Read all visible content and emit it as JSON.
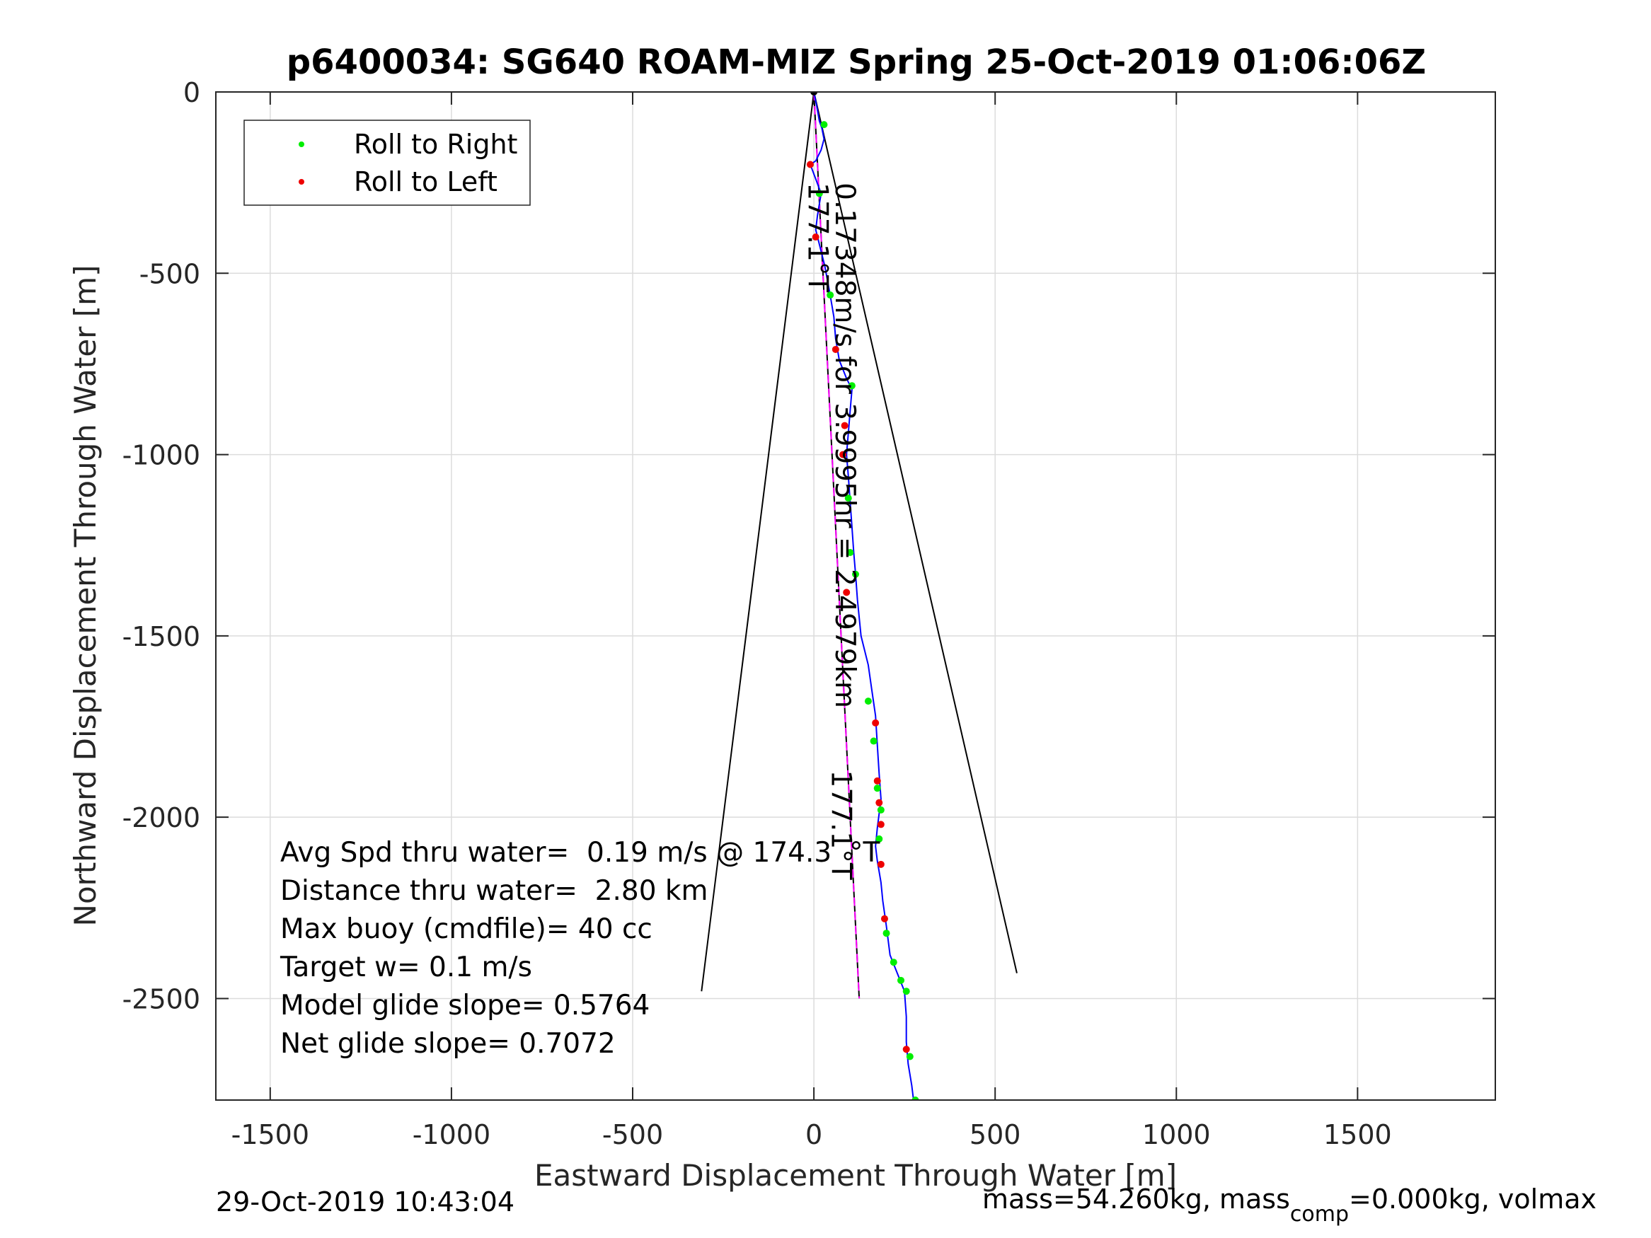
{
  "chart_data": {
    "type": "line",
    "title": "p6400034: SG640 ROAM-MIZ Spring 25-Oct-2019 01:06:06Z",
    "xlabel": "Eastward Displacement Through Water [m]",
    "ylabel": "Northward Displacement Through Water [m]",
    "xlim": [
      -1650,
      1880
    ],
    "ylim": [
      -2780,
      0
    ],
    "xticks": [
      -1500,
      -1000,
      -500,
      0,
      500,
      1000,
      1500
    ],
    "yticks": [
      0,
      -500,
      -1000,
      -1500,
      -2000,
      -2500
    ],
    "grid": true,
    "legend_position": "top-left",
    "legend": [
      {
        "label": "Roll to Right",
        "color": "#00ee00"
      },
      {
        "label": "Roll to Left",
        "color": "#ee0000"
      }
    ],
    "track": {
      "color": "#0000ff",
      "x": [
        0,
        8,
        15,
        22,
        28,
        20,
        5,
        -10,
        5,
        20,
        10,
        5,
        15,
        30,
        45,
        55,
        60,
        70,
        90,
        105,
        100,
        95,
        90,
        95,
        100,
        105,
        110,
        115,
        120,
        130,
        150,
        160,
        170,
        175,
        180,
        185,
        175,
        170,
        175,
        185,
        190,
        200,
        210,
        230,
        250,
        255,
        255,
        260,
        270,
        275
      ],
      "y": [
        0,
        -40,
        -80,
        -100,
        -130,
        -160,
        -190,
        -200,
        -240,
        -280,
        -340,
        -380,
        -420,
        -480,
        -560,
        -620,
        -680,
        -740,
        -790,
        -820,
        -880,
        -940,
        -1000,
        -1060,
        -1130,
        -1200,
        -1270,
        -1330,
        -1400,
        -1500,
        -1580,
        -1650,
        -1720,
        -1800,
        -1880,
        -1950,
        -2030,
        -2080,
        -2120,
        -2180,
        -2230,
        -2300,
        -2380,
        -2430,
        -2480,
        -2550,
        -2620,
        -2680,
        -2740,
        -2780
      ]
    },
    "roll_right_points": {
      "x": [
        28,
        15,
        45,
        105,
        95,
        100,
        115,
        150,
        165,
        175,
        185,
        180,
        200,
        220,
        240,
        255,
        265,
        280
      ],
      "y": [
        -90,
        -280,
        -560,
        -810,
        -1120,
        -1270,
        -1330,
        -1680,
        -1790,
        -1920,
        -1980,
        -2060,
        -2320,
        -2400,
        -2450,
        -2480,
        -2660,
        -2780
      ]
    },
    "roll_left_points": {
      "x": [
        -10,
        5,
        60,
        85,
        80,
        90,
        170,
        175,
        180,
        185,
        185,
        195,
        255
      ],
      "y": [
        -200,
        -400,
        -710,
        -920,
        -1000,
        -1380,
        -1740,
        -1900,
        -1960,
        -2020,
        -2130,
        -2280,
        -2640
      ]
    },
    "lines": [
      {
        "name": "cone-left",
        "x": [
          0,
          -310
        ],
        "y": [
          0,
          -2480
        ],
        "color": "#000000"
      },
      {
        "name": "cone-right",
        "x": [
          0,
          560
        ],
        "y": [
          0,
          -2430
        ],
        "color": "#000000"
      },
      {
        "name": "mean-heading",
        "x": [
          0,
          125
        ],
        "y": [
          0,
          -2500
        ],
        "color": "#000000"
      },
      {
        "name": "target-heading",
        "x": [
          0,
          125
        ],
        "y": [
          0,
          -2500
        ],
        "color": "#ff00ff",
        "dashed": true
      }
    ],
    "annotations": [
      {
        "text": "177.1°T",
        "x": -15,
        "y": -250,
        "rotate": 90
      },
      {
        "text": "0.17348m/s for 3.9995hr = 2.4979km",
        "x": 60,
        "y": -250,
        "rotate": 90
      },
      {
        "text": "177.1°T",
        "x": 50,
        "y": -1870,
        "rotate": 90
      }
    ]
  },
  "stats": {
    "avg_speed": "Avg Spd thru water=  0.19 m/s @ 174.3  °T",
    "distance": "Distance thru water=  2.80 km",
    "max_buoy": "Max buoy (cmdfile)= 40 cc",
    "target_w": "Target w= 0.1 m/s",
    "model_glide": "Model glide slope= 0.5764",
    "net_glide": "Net glide slope= 0.7072"
  },
  "footer": {
    "timestamp": "29-Oct-2019 10:43:04",
    "mass_prefix": "mass=54.260kg, mass",
    "mass_sub": "comp",
    "mass_suffix": "=0.000kg, volmax"
  }
}
